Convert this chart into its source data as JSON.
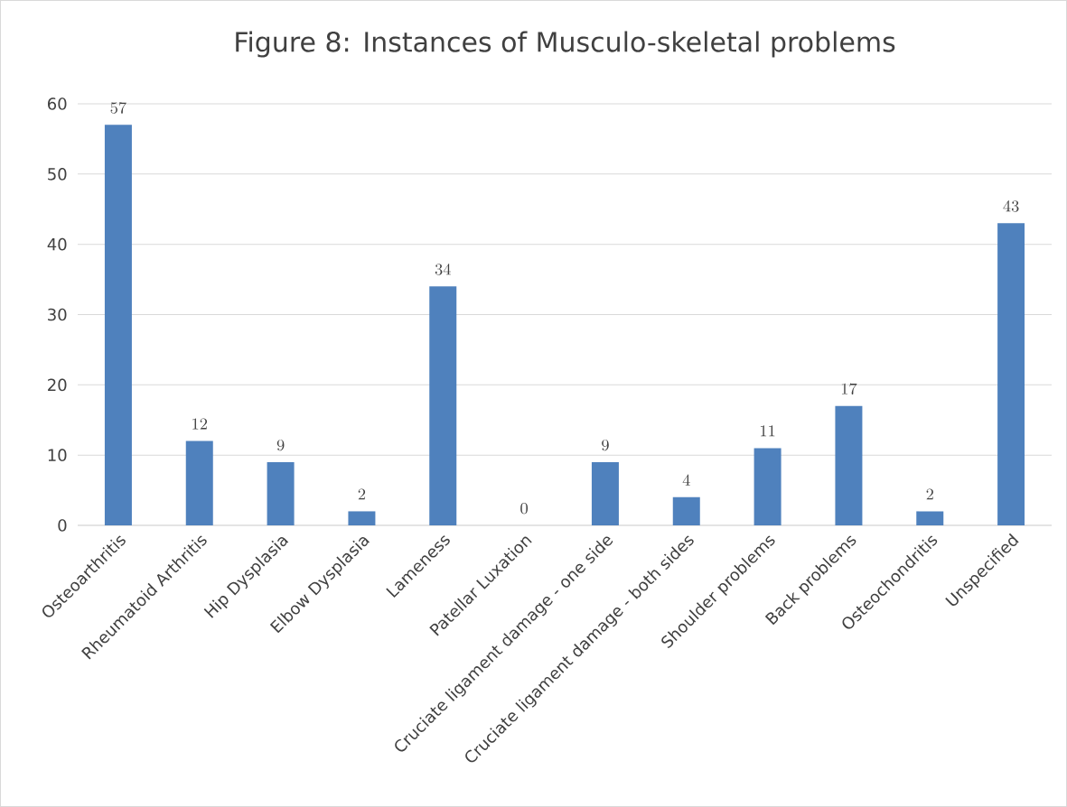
{
  "chart_data": {
    "type": "bar",
    "title": "Figure 8: Instances of Musculo-skeletal problems",
    "categories": [
      "Osteoarthritis",
      "Rheumatoid Arthritis",
      "Hip Dysplasia",
      "Elbow Dysplasia",
      "Lameness",
      "Patellar Luxation",
      "Cruciate ligament damage - one side",
      "Cruciate ligament damage - both sides",
      "Shoulder problems",
      "Back problems",
      "Osteochondritis",
      "Unspecified"
    ],
    "values": [
      57,
      12,
      9,
      2,
      34,
      0,
      9,
      4,
      11,
      17,
      2,
      43
    ],
    "color": "#4f81bd",
    "ylim": [
      0,
      60
    ],
    "yticks": [
      0,
      10,
      20,
      30,
      40,
      50,
      60
    ],
    "grid": "y",
    "data_labels": true
  }
}
